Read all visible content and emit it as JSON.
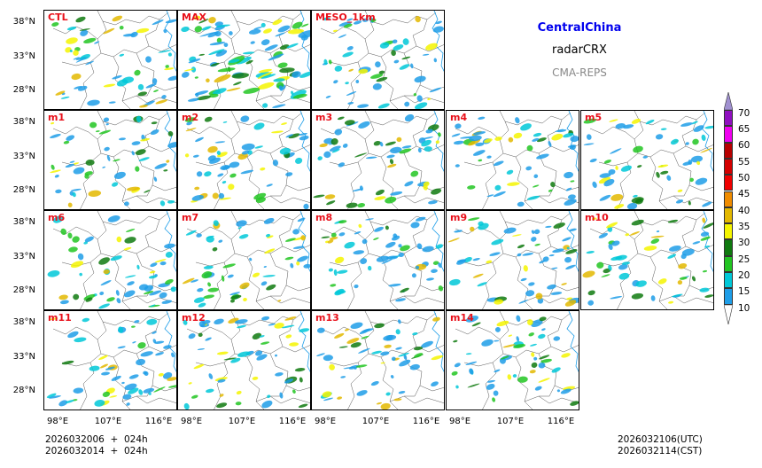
{
  "header": {
    "region": "CentralChina",
    "variable": "radarCRX",
    "model": "CMA-REPS"
  },
  "panels": [
    {
      "label": "CTL"
    },
    {
      "label": "MAX"
    },
    {
      "label": "MESO_1km"
    },
    {
      "label": "m1"
    },
    {
      "label": "m2"
    },
    {
      "label": "m3"
    },
    {
      "label": "m4"
    },
    {
      "label": "m5"
    },
    {
      "label": "m6"
    },
    {
      "label": "m7"
    },
    {
      "label": "m8"
    },
    {
      "label": "m9"
    },
    {
      "label": "m10"
    },
    {
      "label": "m11"
    },
    {
      "label": "m12"
    },
    {
      "label": "m13"
    },
    {
      "label": "m14"
    }
  ],
  "axes": {
    "lat_ticks": [
      "38°N",
      "33°N",
      "28°N"
    ],
    "lon_ticks": [
      "98°E",
      "107°E",
      "116°E"
    ]
  },
  "colorbar": {
    "levels": [
      "10",
      "15",
      "20",
      "25",
      "30",
      "35",
      "40",
      "45",
      "50",
      "55",
      "60",
      "65",
      "70"
    ],
    "colors": [
      "#1e9ee8",
      "#00c8d8",
      "#22c522",
      "#0f7a0f",
      "#f5f500",
      "#e3b800",
      "#f08c00",
      "#f00000",
      "#d40000",
      "#b80000",
      "#f000f0",
      "#9010c0",
      "#a090d0"
    ]
  },
  "footer": {
    "init_utc": "2026032006  +  024h",
    "init_cst": "2026032014  +  024h",
    "valid_utc": "2026032106(UTC)",
    "valid_cst": "2026032114(CST)"
  }
}
